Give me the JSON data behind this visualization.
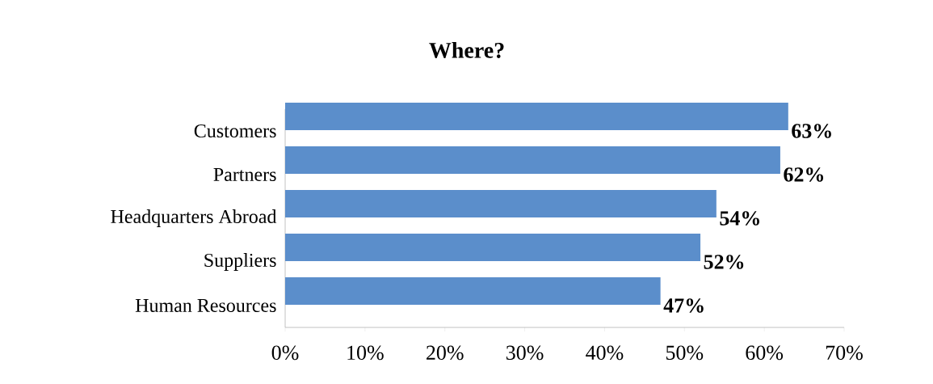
{
  "chart_data": {
    "type": "bar",
    "orientation": "horizontal",
    "title": "Where?",
    "categories": [
      "Customers",
      "Partners",
      "Headquarters Abroad",
      "Suppliers",
      "Human Resources"
    ],
    "values": [
      63,
      62,
      54,
      52,
      47
    ],
    "value_labels": [
      "63%",
      "62%",
      "54%",
      "52%",
      "47%"
    ],
    "color": "#5b8ecb",
    "xlim": [
      0,
      70
    ],
    "xticks": [
      {
        "value": 0,
        "label": "0%"
      },
      {
        "value": 10,
        "label": "10%"
      },
      {
        "value": 20,
        "label": "20%"
      },
      {
        "value": 30,
        "label": "30%"
      },
      {
        "value": 40,
        "label": "40%"
      },
      {
        "value": 50,
        "label": "50%"
      },
      {
        "value": 60,
        "label": "60%"
      },
      {
        "value": 70,
        "label": "70%"
      }
    ],
    "grid": false
  }
}
